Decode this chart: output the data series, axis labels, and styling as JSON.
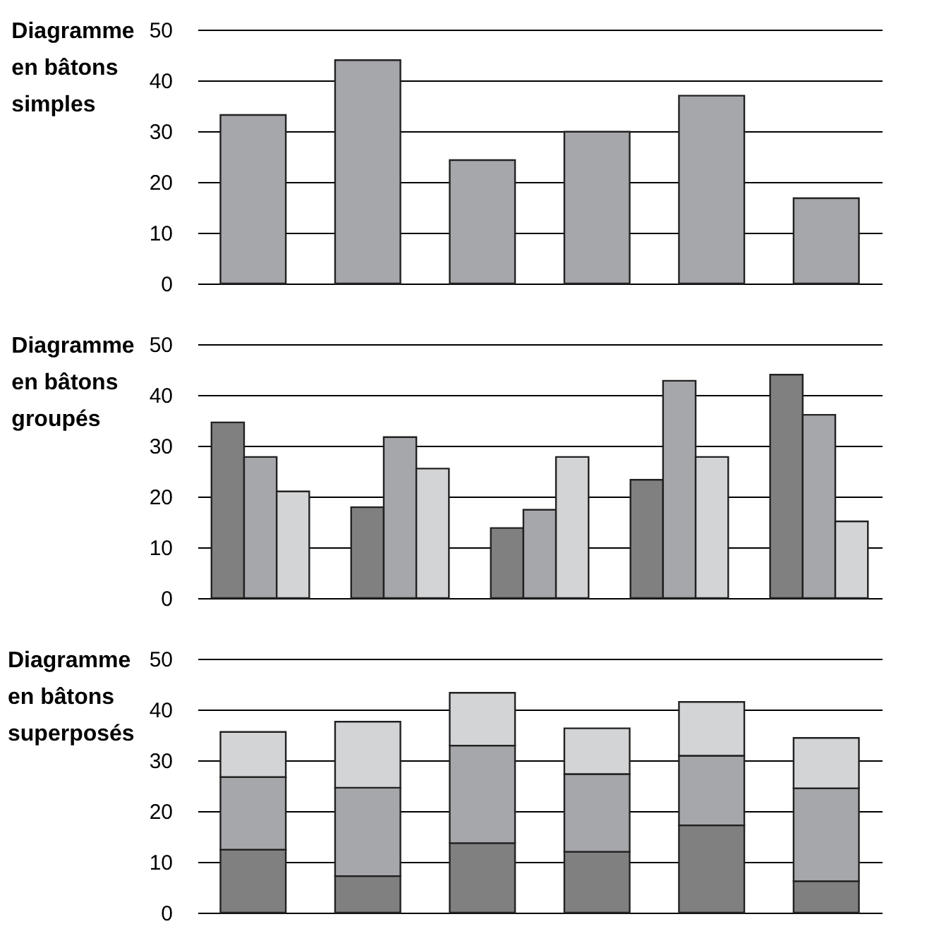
{
  "chart_data": [
    {
      "type": "bar",
      "title": "Diagramme en bâtons simples",
      "categories": [
        null,
        null,
        null,
        null,
        null,
        null
      ],
      "values": [
        33.2,
        44.0,
        24.3,
        29.9,
        37.0,
        16.8
      ],
      "color": "#a6a7ab",
      "ylim": [
        0,
        50
      ],
      "yticks": [
        0,
        10,
        20,
        30,
        40,
        50
      ],
      "grid": "y",
      "tick_labels": "y"
    },
    {
      "type": "bar",
      "title": "Diagramme en bâtons groupés",
      "categories": [
        null,
        null,
        null,
        null,
        null
      ],
      "series": [
        {
          "color": "#808080",
          "values": [
            34.6,
            17.9,
            13.8,
            23.3,
            44.0
          ]
        },
        {
          "color": "#a6a7ab",
          "values": [
            27.8,
            31.7,
            17.4,
            42.8,
            36.1
          ]
        },
        {
          "color": "#d3d4d6",
          "values": [
            21.0,
            25.5,
            27.8,
            27.8,
            15.1
          ]
        }
      ],
      "ylim": [
        0,
        50
      ],
      "yticks": [
        0,
        10,
        20,
        30,
        40,
        50
      ],
      "grid": "y",
      "tick_labels": "y"
    },
    {
      "type": "bar",
      "title": "Diagramme en bâtons superposés",
      "stacked": true,
      "categories": [
        null,
        null,
        null,
        null,
        null,
        null
      ],
      "series": [
        {
          "color": "#808080",
          "values": [
            12.4,
            7.2,
            13.7,
            12.0,
            17.2,
            6.2
          ]
        },
        {
          "color": "#a6a7ab",
          "values": [
            14.3,
            17.4,
            19.2,
            15.3,
            13.7,
            18.3
          ]
        },
        {
          "color": "#d3d4d6",
          "values": [
            8.9,
            13.0,
            10.4,
            9.0,
            10.6,
            9.9
          ]
        }
      ],
      "ylim": [
        0,
        50
      ],
      "yticks": [
        0,
        10,
        20,
        30,
        40,
        50
      ],
      "grid": "y",
      "tick_labels": "y"
    }
  ]
}
